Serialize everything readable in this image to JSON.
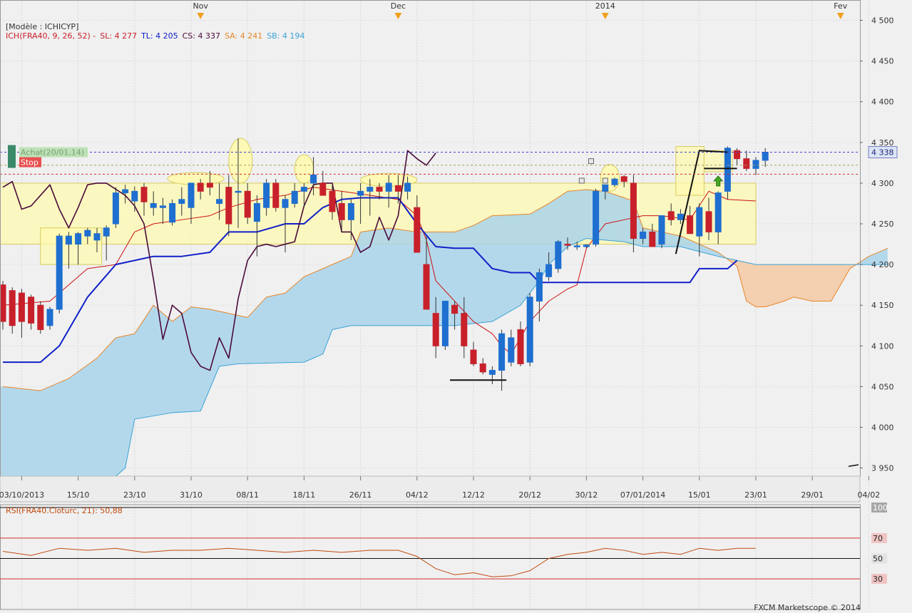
{
  "header": {
    "model_label": "[Modèle : ICHICYP]",
    "indicator_prefix": "ICH(FRA40, 9, 26, 52) -",
    "sl": "SL: 4 277",
    "tl": "TL: 4 205",
    "cs": "CS: 4 337",
    "sa": "SA: 4 241",
    "sb": "SB: 4 194"
  },
  "trade": {
    "achat_label": "Achat(20/01,14)",
    "stop_label": "Stop",
    "entry_price": 4338,
    "stop_price": 4311,
    "target_price": 4322
  },
  "colors": {
    "bull": "#1e6fd0",
    "bear": "#c8202a",
    "tenkan": "#cc1010",
    "kijun": "#1020c8",
    "chikou": "#4a0a3a",
    "kumo_bull": "#a9d4ea",
    "kumo_bear": "#f4c9a5",
    "ssa": "#e8862a",
    "ssb": "#3aa2d6",
    "rsi_line": "#c04a10",
    "zone": "#fffab0"
  },
  "footer": "FXCM Marketscope © 2014",
  "chart_data": {
    "type": "candlestick",
    "ylim": [
      3940,
      4525
    ],
    "yticks": [
      3950,
      4000,
      4050,
      4100,
      4150,
      4200,
      4250,
      4300,
      4350,
      4400,
      4450,
      4500
    ],
    "ytick_labels": [
      "3 950",
      "4 000",
      "4 050",
      "4 100",
      "4 150",
      "4 200",
      "4 250",
      "4 300",
      "4 350",
      "4 400",
      "4 450",
      "4 500"
    ],
    "xtick_labels": [
      {
        "idx": 2,
        "label": "03/10/2013"
      },
      {
        "idx": 8,
        "label": "15/10"
      },
      {
        "idx": 14,
        "label": "23/10"
      },
      {
        "idx": 20,
        "label": "31/10"
      },
      {
        "idx": 26,
        "label": "08/11"
      },
      {
        "idx": 32,
        "label": "18/11"
      },
      {
        "idx": 38,
        "label": "26/11"
      },
      {
        "idx": 44,
        "label": "04/12"
      },
      {
        "idx": 50,
        "label": "12/12"
      },
      {
        "idx": 56,
        "label": "20/12"
      },
      {
        "idx": 62,
        "label": "30/12"
      },
      {
        "idx": 68,
        "label": "07/01/2014"
      },
      {
        "idx": 74,
        "label": "15/01"
      },
      {
        "idx": 80,
        "label": "23/01"
      },
      {
        "idx": 86,
        "label": "29/01"
      },
      {
        "idx": 92,
        "label": "04/02"
      }
    ],
    "month_markers": [
      {
        "idx": 21,
        "label": "Nov"
      },
      {
        "idx": 42,
        "label": "Dec"
      },
      {
        "idx": 64,
        "label": "2014"
      },
      {
        "idx": 89,
        "label": "Fev"
      }
    ],
    "current_price_label": "4 338",
    "current_price": 4338,
    "candles": [
      [
        4175,
        4180,
        4120,
        4130
      ],
      [
        4168,
        4172,
        4115,
        4125
      ],
      [
        4165,
        4170,
        4110,
        4130
      ],
      [
        4160,
        4163,
        4120,
        4128
      ],
      [
        4150,
        4155,
        4115,
        4120
      ],
      [
        4125,
        4148,
        4120,
        4145
      ],
      [
        4145,
        4238,
        4140,
        4235
      ],
      [
        4225,
        4240,
        4195,
        4235
      ],
      [
        4225,
        4240,
        4200,
        4238
      ],
      [
        4235,
        4245,
        4225,
        4242
      ],
      [
        4230,
        4245,
        4215,
        4238
      ],
      [
        4235,
        4248,
        4205,
        4245
      ],
      [
        4250,
        4295,
        4245,
        4288
      ],
      [
        4288,
        4298,
        4275,
        4292
      ],
      [
        4278,
        4296,
        4265,
        4290
      ],
      [
        4295,
        4300,
        4260,
        4277
      ],
      [
        4270,
        4290,
        4260,
        4275
      ],
      [
        4270,
        4282,
        4250,
        4272
      ],
      [
        4252,
        4280,
        4248,
        4275
      ],
      [
        4275,
        4295,
        4260,
        4280
      ],
      [
        4270,
        4300,
        4250,
        4300
      ],
      [
        4300,
        4305,
        4280,
        4290
      ],
      [
        4300,
        4315,
        4285,
        4295
      ],
      [
        4275,
        4300,
        4255,
        4280
      ],
      [
        4295,
        4310,
        4235,
        4250
      ],
      [
        4290,
        4355,
        4245,
        4290
      ],
      [
        4290,
        4300,
        4250,
        4258
      ],
      [
        4253,
        4285,
        4210,
        4275
      ],
      [
        4270,
        4305,
        4260,
        4300
      ],
      [
        4300,
        4305,
        4265,
        4270
      ],
      [
        4270,
        4285,
        4215,
        4280
      ],
      [
        4275,
        4300,
        4270,
        4290
      ],
      [
        4290,
        4300,
        4270,
        4295
      ],
      [
        4300,
        4332,
        4285,
        4310
      ],
      [
        4300,
        4315,
        4290,
        4285
      ],
      [
        4290,
        4300,
        4255,
        4265
      ],
      [
        4275,
        4290,
        4240,
        4255
      ],
      [
        4255,
        4280,
        4230,
        4275
      ],
      [
        4285,
        4300,
        4250,
        4290
      ],
      [
        4290,
        4305,
        4260,
        4295
      ],
      [
        4295,
        4300,
        4280,
        4290
      ],
      [
        4290,
        4310,
        4270,
        4300
      ],
      [
        4297,
        4310,
        4275,
        4290
      ],
      [
        4290,
        4308,
        4280,
        4300
      ],
      [
        4270,
        4285,
        4218,
        4215
      ],
      [
        4200,
        4235,
        4150,
        4145
      ],
      [
        4140,
        4160,
        4085,
        4100
      ],
      [
        4100,
        4150,
        4095,
        4155
      ],
      [
        4150,
        4155,
        4120,
        4140
      ],
      [
        4140,
        4160,
        4085,
        4100
      ],
      [
        4095,
        4105,
        4075,
        4078
      ],
      [
        4078,
        4085,
        4065,
        4068
      ],
      [
        4065,
        4075,
        4053,
        4070
      ],
      [
        4070,
        4120,
        4045,
        4115
      ],
      [
        4080,
        4120,
        4075,
        4110
      ],
      [
        4120,
        4130,
        4075,
        4078
      ],
      [
        4080,
        4165,
        4075,
        4160
      ],
      [
        4155,
        4195,
        4130,
        4190
      ],
      [
        4185,
        4215,
        4180,
        4200
      ],
      [
        4195,
        4230,
        4190,
        4228
      ],
      [
        4225,
        4233,
        4218,
        4224
      ],
      [
        4223,
        4228,
        4218,
        4223
      ],
      [
        4222,
        4225,
        4220,
        4224
      ],
      [
        4225,
        4293,
        4222,
        4290
      ],
      [
        4290,
        4298,
        4280,
        4298
      ],
      [
        4298,
        4307,
        4295,
        4305
      ],
      [
        4308,
        4310,
        4295,
        4302
      ],
      [
        4300,
        4310,
        4215,
        4232
      ],
      [
        4232,
        4245,
        4225,
        4240
      ],
      [
        4240,
        4250,
        4225,
        4222
      ],
      [
        4225,
        4258,
        4220,
        4260
      ],
      [
        4265,
        4275,
        4248,
        4255
      ],
      [
        4255,
        4268,
        4250,
        4262
      ],
      [
        4260,
        4272,
        4240,
        4238
      ],
      [
        4235,
        4275,
        4210,
        4270
      ],
      [
        4265,
        4282,
        4230,
        4240
      ],
      [
        4240,
        4290,
        4225,
        4288
      ],
      [
        4290,
        4345,
        4280,
        4343
      ],
      [
        4340,
        4343,
        4322,
        4330
      ],
      [
        4330,
        4340,
        4315,
        4318
      ],
      [
        4318,
        4332,
        4310,
        4328
      ],
      [
        4328,
        4343,
        4320,
        4338
      ]
    ],
    "tenkan": [
      [
        0,
        4150
      ],
      [
        5,
        4155
      ],
      [
        9,
        4195
      ],
      [
        12,
        4200
      ],
      [
        14,
        4240
      ],
      [
        16,
        4250
      ],
      [
        19,
        4255
      ],
      [
        22,
        4260
      ],
      [
        24,
        4270
      ],
      [
        27,
        4280
      ],
      [
        30,
        4285
      ],
      [
        33,
        4295
      ],
      [
        36,
        4290
      ],
      [
        39,
        4285
      ],
      [
        42,
        4280
      ],
      [
        44,
        4260
      ],
      [
        45,
        4230
      ],
      [
        46,
        4180
      ],
      [
        50,
        4130
      ],
      [
        52,
        4115
      ],
      [
        53,
        4100
      ],
      [
        54,
        4090
      ],
      [
        56,
        4130
      ],
      [
        58,
        4155
      ],
      [
        60,
        4170
      ],
      [
        61,
        4175
      ],
      [
        62,
        4220
      ],
      [
        64,
        4250
      ],
      [
        66,
        4255
      ],
      [
        68,
        4260
      ],
      [
        70,
        4260
      ],
      [
        73,
        4255
      ],
      [
        75,
        4290
      ],
      [
        77,
        4280
      ],
      [
        80,
        4278
      ]
    ],
    "kijun": [
      [
        0,
        4080
      ],
      [
        4,
        4080
      ],
      [
        6,
        4100
      ],
      [
        9,
        4160
      ],
      [
        12,
        4200
      ],
      [
        14,
        4205
      ],
      [
        16,
        4210
      ],
      [
        19,
        4210
      ],
      [
        22,
        4215
      ],
      [
        24,
        4240
      ],
      [
        27,
        4240
      ],
      [
        30,
        4250
      ],
      [
        32,
        4250
      ],
      [
        34,
        4270
      ],
      [
        36,
        4280
      ],
      [
        38,
        4282
      ],
      [
        42,
        4282
      ],
      [
        44,
        4250
      ],
      [
        46,
        4222
      ],
      [
        48,
        4220
      ],
      [
        50,
        4220
      ],
      [
        52,
        4195
      ],
      [
        54,
        4190
      ],
      [
        56,
        4190
      ],
      [
        57,
        4178
      ],
      [
        60,
        4178
      ],
      [
        64,
        4178
      ],
      [
        66,
        4178
      ],
      [
        70,
        4178
      ],
      [
        73,
        4178
      ],
      [
        74,
        4195
      ],
      [
        76,
        4195
      ],
      [
        77,
        4195
      ],
      [
        78,
        4205
      ]
    ],
    "chikou": [
      [
        0,
        4295
      ],
      [
        1,
        4302
      ],
      [
        2,
        4268
      ],
      [
        3,
        4272
      ],
      [
        4,
        4285
      ],
      [
        5,
        4298
      ],
      [
        6,
        4268
      ],
      [
        7,
        4245
      ],
      [
        8,
        4270
      ],
      [
        9,
        4298
      ],
      [
        10,
        4300
      ],
      [
        11,
        4300
      ],
      [
        13,
        4285
      ],
      [
        14,
        4272
      ],
      [
        15,
        4250
      ],
      [
        16,
        4182
      ],
      [
        17,
        4108
      ],
      [
        18,
        4150
      ],
      [
        19,
        4140
      ],
      [
        20,
        4092
      ],
      [
        21,
        4075
      ],
      [
        22,
        4070
      ],
      [
        23,
        4110
      ],
      [
        24,
        4085
      ],
      [
        25,
        4158
      ],
      [
        26,
        4205
      ],
      [
        27,
        4222
      ],
      [
        28,
        4225
      ],
      [
        29,
        4222
      ],
      [
        30,
        4225
      ],
      [
        31,
        4228
      ],
      [
        32,
        4272
      ],
      [
        33,
        4298
      ],
      [
        34,
        4300
      ],
      [
        35,
        4300
      ],
      [
        36,
        4240
      ],
      [
        37,
        4240
      ],
      [
        38,
        4215
      ],
      [
        39,
        4222
      ],
      [
        40,
        4258
      ],
      [
        41,
        4230
      ],
      [
        42,
        4260
      ],
      [
        43,
        4340
      ],
      [
        44,
        4330
      ],
      [
        45,
        4322
      ],
      [
        46,
        4337
      ]
    ],
    "kumo": {
      "ssa": [
        [
          0,
          4050
        ],
        [
          4,
          4045
        ],
        [
          7,
          4060
        ],
        [
          10,
          4085
        ],
        [
          12,
          4110
        ],
        [
          14,
          4115
        ],
        [
          16,
          4150
        ],
        [
          18,
          4130
        ],
        [
          20,
          4148
        ],
        [
          22,
          4145
        ],
        [
          24,
          4140
        ],
        [
          26,
          4135
        ],
        [
          28,
          4160
        ],
        [
          30,
          4165
        ],
        [
          32,
          4185
        ],
        [
          35,
          4200
        ],
        [
          37,
          4210
        ],
        [
          38,
          4240
        ],
        [
          41,
          4245
        ],
        [
          44,
          4240
        ],
        [
          48,
          4240
        ],
        [
          50,
          4248
        ],
        [
          52,
          4260
        ],
        [
          56,
          4262
        ],
        [
          58,
          4275
        ],
        [
          60,
          4290
        ],
        [
          62,
          4292
        ],
        [
          64,
          4290
        ],
        [
          66,
          4282
        ],
        [
          67,
          4278
        ],
        [
          68,
          4245
        ],
        [
          70,
          4240
        ],
        [
          72,
          4235
        ],
        [
          74,
          4225
        ],
        [
          76,
          4215
        ],
        [
          78,
          4198
        ],
        [
          79,
          4155
        ],
        [
          80,
          4148
        ],
        [
          81,
          4148
        ],
        [
          83,
          4155
        ],
        [
          84,
          4160
        ],
        [
          86,
          4155
        ],
        [
          88,
          4155
        ],
        [
          90,
          4195
        ],
        [
          92,
          4210
        ],
        [
          94,
          4220
        ]
      ],
      "ssb": [
        [
          0,
          3920
        ],
        [
          10,
          3920
        ],
        [
          13,
          3950
        ],
        [
          14,
          4010
        ],
        [
          18,
          4018
        ],
        [
          21,
          4020
        ],
        [
          23,
          4075
        ],
        [
          25,
          4078
        ],
        [
          32,
          4080
        ],
        [
          34,
          4090
        ],
        [
          35,
          4120
        ],
        [
          37,
          4125
        ],
        [
          39,
          4125
        ],
        [
          42,
          4125
        ],
        [
          48,
          4125
        ],
        [
          52,
          4130
        ],
        [
          55,
          4150
        ],
        [
          57,
          4180
        ],
        [
          58,
          4200
        ],
        [
          60,
          4222
        ],
        [
          62,
          4232
        ],
        [
          66,
          4228
        ],
        [
          68,
          4222
        ],
        [
          72,
          4222
        ],
        [
          74,
          4216
        ],
        [
          76,
          4210
        ],
        [
          78,
          4205
        ],
        [
          80,
          4200
        ],
        [
          84,
          4200
        ],
        [
          88,
          4200
        ],
        [
          94,
          4200
        ]
      ]
    },
    "rsi": {
      "label": "RSI(FRA40.Cloturc, 21): 50,88",
      "levels": [
        100,
        70,
        50,
        30
      ],
      "level_labels": [
        "100",
        "70",
        "50",
        "30"
      ],
      "values": [
        [
          0,
          57
        ],
        [
          3,
          53
        ],
        [
          6,
          60
        ],
        [
          9,
          58
        ],
        [
          12,
          60
        ],
        [
          15,
          56
        ],
        [
          18,
          58
        ],
        [
          21,
          58
        ],
        [
          24,
          60
        ],
        [
          27,
          58
        ],
        [
          30,
          56
        ],
        [
          33,
          58
        ],
        [
          36,
          56
        ],
        [
          39,
          58
        ],
        [
          42,
          58
        ],
        [
          44,
          52
        ],
        [
          46,
          40
        ],
        [
          48,
          34
        ],
        [
          50,
          36
        ],
        [
          52,
          32
        ],
        [
          54,
          33
        ],
        [
          56,
          38
        ],
        [
          58,
          50
        ],
        [
          60,
          54
        ],
        [
          62,
          56
        ],
        [
          64,
          60
        ],
        [
          66,
          58
        ],
        [
          68,
          54
        ],
        [
          70,
          56
        ],
        [
          72,
          54
        ],
        [
          74,
          60
        ],
        [
          76,
          58
        ],
        [
          78,
          60
        ],
        [
          80,
          60
        ]
      ]
    }
  }
}
